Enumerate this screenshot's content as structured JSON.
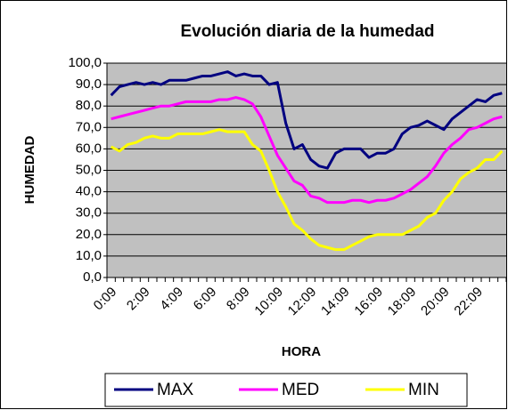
{
  "chart_data": {
    "type": "line",
    "title": "Evolución diaria de la humedad",
    "x_label": "HORA",
    "y_label": "HUMEDAD",
    "categories": [
      "0:09",
      null,
      null,
      null,
      "2:09",
      null,
      null,
      null,
      "4:09",
      null,
      null,
      null,
      "6:09",
      null,
      null,
      null,
      "8:09",
      null,
      null,
      null,
      "10:09",
      null,
      null,
      null,
      "12:09",
      null,
      null,
      null,
      "14:09",
      null,
      null,
      null,
      "16:09",
      null,
      null,
      null,
      "18:09",
      null,
      null,
      null,
      "20:09",
      null,
      null,
      null,
      "22:09",
      null,
      null,
      null
    ],
    "series": [
      {
        "name": "MAX",
        "color": "#000080",
        "values": [
          85,
          89,
          90,
          91,
          90,
          91,
          90,
          92,
          92,
          92,
          93,
          94,
          94,
          95,
          96,
          94,
          95,
          94,
          94,
          90,
          91,
          72,
          60,
          62,
          55,
          52,
          51,
          58,
          60,
          60,
          60,
          56,
          58,
          58,
          60,
          67,
          70,
          71,
          73,
          71,
          69,
          74,
          77,
          80,
          83,
          82,
          85,
          86
        ]
      },
      {
        "name": "MED",
        "color": "#ff00ff",
        "values": [
          74,
          75,
          76,
          77,
          78,
          79,
          80,
          80,
          81,
          82,
          82,
          82,
          82,
          83,
          83,
          84,
          83,
          81,
          75,
          66,
          57,
          51,
          45,
          43,
          38,
          37,
          35,
          35,
          35,
          36,
          36,
          35,
          36,
          36,
          37,
          39,
          41,
          44,
          47,
          52,
          58,
          62,
          65,
          69,
          70,
          72,
          74,
          75
        ]
      },
      {
        "name": "MIN",
        "color": "#ffff00",
        "values": [
          61,
          59,
          62,
          63,
          65,
          66,
          65,
          65,
          67,
          67,
          67,
          67,
          68,
          69,
          68,
          68,
          68,
          62,
          59,
          50,
          40,
          33,
          25,
          22,
          18,
          15,
          14,
          13,
          13,
          15,
          17,
          19,
          20,
          20,
          20,
          20,
          22,
          24,
          28,
          30,
          36,
          40,
          46,
          49,
          51,
          55,
          55,
          59
        ]
      }
    ],
    "ylim": [
      0,
      100
    ],
    "yticks": [
      {
        "value": 0,
        "label": "0,0"
      },
      {
        "value": 10,
        "label": "10,0"
      },
      {
        "value": 20,
        "label": "20,0"
      },
      {
        "value": 30,
        "label": "30,0"
      },
      {
        "value": 40,
        "label": "40,0"
      },
      {
        "value": 50,
        "label": "50,0"
      },
      {
        "value": 60,
        "label": "60,0"
      },
      {
        "value": 70,
        "label": "70,0"
      },
      {
        "value": 80,
        "label": "80,0"
      },
      {
        "value": 90,
        "label": "90,0"
      },
      {
        "value": 100,
        "label": "100,0"
      }
    ],
    "grid": true,
    "plot_background": "#c0c0c0",
    "legend": "bottom"
  }
}
